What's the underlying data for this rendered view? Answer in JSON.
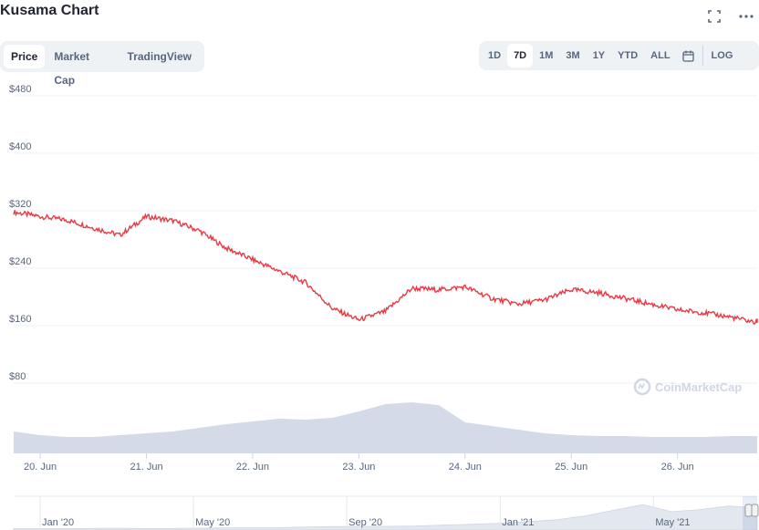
{
  "header": {
    "title": "Kusama Chart"
  },
  "icons": {
    "fullscreen": "fullscreen-icon",
    "more": "more-icon",
    "calendar": "calendar-icon",
    "watermark": "coinmarketcap-logo-icon"
  },
  "tabs": [
    {
      "label": "Price",
      "active": true
    },
    {
      "label": "Market Cap",
      "active": false
    },
    {
      "label": "TradingView",
      "active": false
    }
  ],
  "ranges": [
    {
      "label": "1D",
      "active": false
    },
    {
      "label": "7D",
      "active": true
    },
    {
      "label": "1M",
      "active": false
    },
    {
      "label": "3M",
      "active": false
    },
    {
      "label": "1Y",
      "active": false
    },
    {
      "label": "YTD",
      "active": false
    },
    {
      "label": "ALL",
      "active": false
    }
  ],
  "log_label": "LOG",
  "watermark": "CoinMarketCap",
  "colors": {
    "line": "#ea3943",
    "volume": "#cfd6e4",
    "navigator": "#e3e7ee",
    "grid": "#eff2f5",
    "text": "#58667e"
  },
  "chart_data": {
    "type": "line",
    "series": [
      {
        "x": [
          "19 Jun 18:00",
          "20 Jun 00:00",
          "20 Jun 06:00",
          "20 Jun 12:00",
          "20 Jun 18:00",
          "21 Jun 00:00",
          "21 Jun 06:00",
          "21 Jun 12:00",
          "21 Jun 18:00",
          "22 Jun 00:00",
          "22 Jun 06:00",
          "22 Jun 12:00",
          "22 Jun 18:00",
          "23 Jun 00:00",
          "23 Jun 06:00",
          "23 Jun 12:00",
          "23 Jun 18:00",
          "24 Jun 00:00",
          "24 Jun 06:00",
          "24 Jun 12:00",
          "24 Jun 18:00",
          "25 Jun 00:00",
          "25 Jun 06:00",
          "25 Jun 12:00",
          "25 Jun 18:00",
          "26 Jun 00:00",
          "26 Jun 06:00",
          "26 Jun 12:00",
          "26 Jun 18:00"
        ],
        "values": [
          318,
          312,
          307,
          296,
          286,
          312,
          306,
          292,
          268,
          252,
          236,
          220,
          184,
          168,
          180,
          212,
          210,
          214,
          198,
          190,
          196,
          210,
          206,
          198,
          190,
          182,
          178,
          172,
          164
        ]
      }
    ],
    "volume_points": [
      [
        "19 Jun 18:00",
        2.4
      ],
      [
        "20 Jun 00:00",
        2.0
      ],
      [
        "20 Jun 06:00",
        1.8
      ],
      [
        "20 Jun 12:00",
        1.8
      ],
      [
        "20 Jun 18:00",
        2.0
      ],
      [
        "21 Jun 00:00",
        2.2
      ],
      [
        "21 Jun 06:00",
        2.4
      ],
      [
        "21 Jun 12:00",
        2.8
      ],
      [
        "21 Jun 18:00",
        3.2
      ],
      [
        "22 Jun 00:00",
        3.5
      ],
      [
        "22 Jun 06:00",
        3.8
      ],
      [
        "22 Jun 12:00",
        3.7
      ],
      [
        "22 Jun 18:00",
        3.9
      ],
      [
        "23 Jun 00:00",
        4.6
      ],
      [
        "23 Jun 06:00",
        5.4
      ],
      [
        "23 Jun 12:00",
        5.6
      ],
      [
        "23 Jun 18:00",
        5.3
      ],
      [
        "24 Jun 00:00",
        3.4
      ],
      [
        "24 Jun 06:00",
        3.0
      ],
      [
        "24 Jun 12:00",
        2.6
      ],
      [
        "24 Jun 18:00",
        2.2
      ],
      [
        "25 Jun 00:00",
        2.0
      ],
      [
        "25 Jun 06:00",
        1.9
      ],
      [
        "25 Jun 12:00",
        1.9
      ],
      [
        "25 Jun 18:00",
        1.8
      ],
      [
        "26 Jun 00:00",
        1.8
      ],
      [
        "26 Jun 06:00",
        1.8
      ],
      [
        "26 Jun 12:00",
        1.9
      ],
      [
        "26 Jun 18:00",
        1.9
      ]
    ],
    "y_ticks": [
      "$480",
      "$400",
      "$320",
      "$240",
      "$160",
      "$80"
    ],
    "y_tick_values": [
      480,
      400,
      320,
      240,
      160,
      80
    ],
    "ylim": [
      40,
      480
    ],
    "x_ticks": [
      "20. Jun",
      "21. Jun",
      "22. Jun",
      "23. Jun",
      "24. Jun",
      "25. Jun",
      "26. Jun"
    ],
    "navigator": {
      "ticks": [
        "Jan '20",
        "May '20",
        "Sep '20",
        "Jan '21",
        "May '21"
      ],
      "tick_fraction": [
        0.0,
        0.22,
        0.44,
        0.66,
        0.88
      ],
      "profile": [
        0.05,
        0.05,
        0.05,
        0.06,
        0.06,
        0.05,
        0.06,
        0.07,
        0.08,
        0.08,
        0.1,
        0.12,
        0.13,
        0.13,
        0.14,
        0.17,
        0.2,
        0.24,
        0.3,
        0.36,
        0.5,
        0.7,
        0.9,
        0.65,
        0.72,
        0.85,
        0.78
      ]
    },
    "grid": true
  }
}
